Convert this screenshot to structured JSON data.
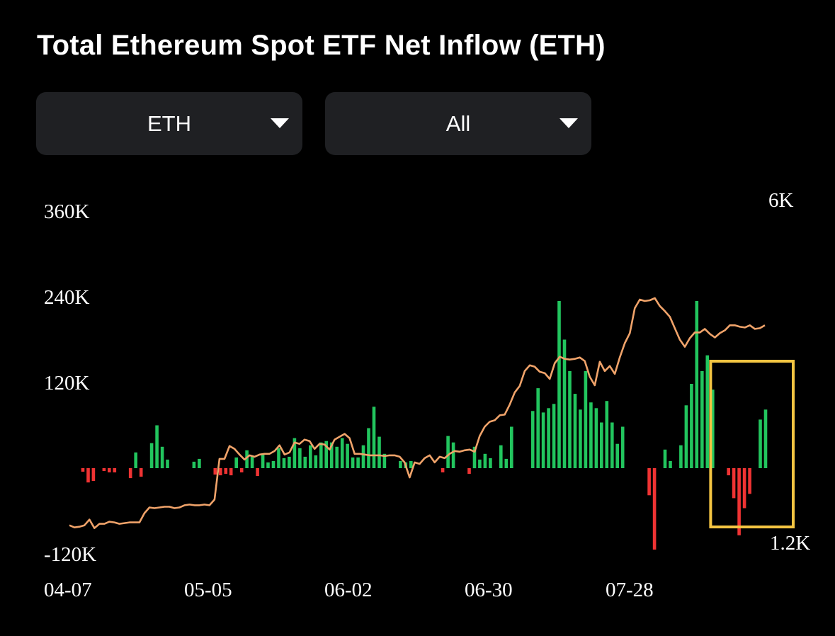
{
  "title": "Total Ethereum Spot ETF Net Inflow (ETH)",
  "filters": {
    "unit": {
      "value": "ETH",
      "icon": "caret-down-icon"
    },
    "range": {
      "value": "All",
      "icon": "caret-down-icon"
    }
  },
  "colors": {
    "background": "#000000",
    "inflow": "#22c55e",
    "outflow": "#ef3333",
    "cumulative_line": "#f0a36a",
    "highlight_box": "#f4c542",
    "dropdown_bg": "#1f2023"
  },
  "chart_data": {
    "type": "bar",
    "title": "Total Ethereum Spot ETF Net Inflow (ETH)",
    "x_tick_labels": [
      "04-07",
      "05-05",
      "06-02",
      "06-30",
      "07-28"
    ],
    "left_axis": {
      "tick_labels": [
        "360K",
        "240K",
        "120K",
        "-120K"
      ],
      "range": [
        -120000,
        360000
      ]
    },
    "right_axis": {
      "tick_labels": [
        "6K",
        "1.2K"
      ]
    },
    "grid": false,
    "series": [
      {
        "kind": "bar",
        "axis": "left",
        "values": [
          -5000,
          -20000,
          -18000,
          0,
          -4000,
          -6000,
          -6000,
          0,
          0,
          -14000,
          22000,
          -12000,
          0,
          35000,
          60000,
          30000,
          12000,
          0,
          0,
          0,
          0,
          9000,
          13000,
          0,
          0,
          -9000,
          -10000,
          -8000,
          -10000,
          15000,
          -6000,
          25000,
          16000,
          -11000,
          20000,
          8000,
          10000,
          28000,
          14000,
          16000,
          42000,
          28000,
          16000,
          32000,
          18000,
          36000,
          38000,
          36000,
          30000,
          42000,
          34000,
          15000,
          15000,
          32000,
          56000,
          86000,
          44000,
          20000,
          0,
          0,
          10000,
          8000,
          10000,
          0,
          0,
          0,
          0,
          0,
          -6000,
          45000,
          36000,
          0,
          0,
          -8000,
          30000,
          12000,
          20000,
          14000,
          0,
          32000,
          13000,
          58000,
          0,
          0,
          0,
          80000,
          112000,
          78000,
          84000,
          90000,
          234000,
          180000,
          136000,
          104000,
          82000,
          136000,
          92000,
          84000,
          64000,
          94000,
          64000,
          34000,
          58000,
          0,
          0,
          0,
          0,
          -38000,
          -114000,
          0,
          26000,
          10000,
          0,
          32000,
          88000,
          118000,
          234000,
          136000,
          158000,
          110000,
          0,
          0,
          -10000,
          -42000,
          -94000,
          -56000,
          -36000,
          0,
          68000,
          82000
        ],
        "colors_by_sign": {
          "positive": "inflow",
          "negative": "outflow"
        }
      },
      {
        "kind": "line",
        "axis": "left",
        "values": [
          -80000,
          -83000,
          -82000,
          -80000,
          -72000,
          -84000,
          -78000,
          -78000,
          -75000,
          -76000,
          -78000,
          -77000,
          -76000,
          -76000,
          -76000,
          -63000,
          -55000,
          -56000,
          -55000,
          -54000,
          -54000,
          -56000,
          -55000,
          -52000,
          -51000,
          -52000,
          -52000,
          -51000,
          -52000,
          -44000,
          13000,
          13000,
          31000,
          27000,
          19000,
          12000,
          18000,
          16000,
          19000,
          20000,
          20000,
          24000,
          32000,
          19000,
          22000,
          36000,
          34000,
          40000,
          38000,
          27000,
          34000,
          33000,
          26000,
          40000,
          44000,
          48000,
          42000,
          20000,
          20000,
          19000,
          18000,
          18000,
          18000,
          17000,
          18000,
          18000,
          16000,
          8000,
          -13000,
          8000,
          6000,
          14000,
          18000,
          8000,
          16000,
          14000,
          20000,
          24000,
          23000,
          25000,
          26000,
          23000,
          45000,
          58000,
          65000,
          67000,
          74000,
          75000,
          89000,
          106000,
          115000,
          136000,
          144000,
          142000,
          135000,
          133000,
          125000,
          147000,
          156000,
          153000,
          152000,
          153000,
          155000,
          150000,
          128000,
          116000,
          149000,
          136000,
          143000,
          132000,
          155000,
          175000,
          189000,
          224000,
          236000,
          234000,
          235000,
          238000,
          227000,
          220000,
          212000,
          196000,
          180000,
          170000,
          182000,
          190000,
          190000,
          195000,
          188000,
          183000,
          189000,
          193000,
          200000,
          200000,
          198000,
          197000,
          200000,
          195000,
          196000,
          200000
        ]
      }
    ],
    "annotations": [
      {
        "type": "highlight-box",
        "color": "highlight_box",
        "covers_last_bars": 10
      }
    ]
  }
}
